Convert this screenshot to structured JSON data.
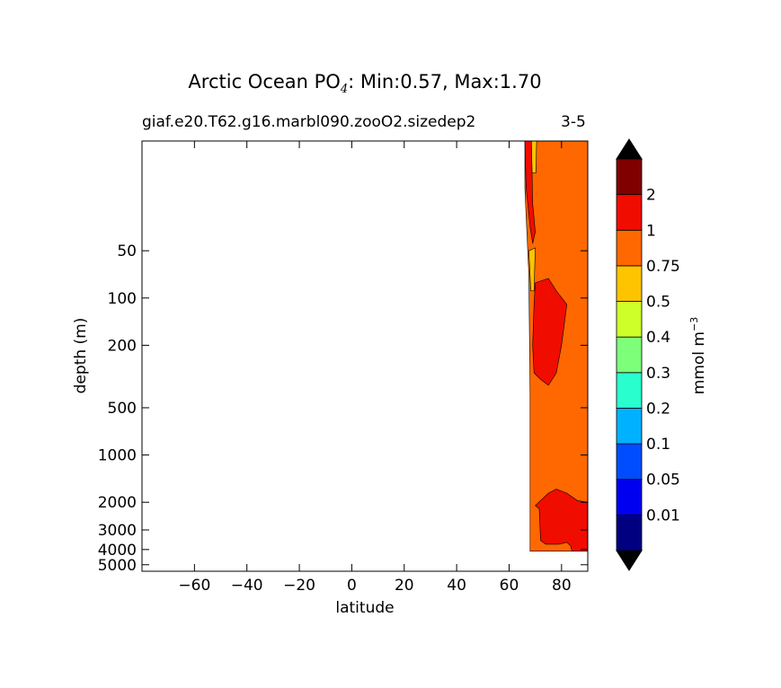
{
  "chart_data": {
    "type": "filled-contour",
    "title": {
      "prefix": "Arctic Ocean PO",
      "subscript": "4",
      "suffix": ": Min:0.57, Max:1.70"
    },
    "subtitle_left": "giaf.e20.T62.g16.marbl090.zooO2.sizedep2",
    "subtitle_right": "3-5",
    "xlabel": "latitude",
    "ylabel": "depth (m)",
    "xlim": [
      -80,
      90
    ],
    "ylim": [
      5500,
      10
    ],
    "x_ticks": [
      -60,
      -40,
      -20,
      0,
      20,
      40,
      60,
      80
    ],
    "x_tick_labels": [
      "−60",
      "−40",
      "−20",
      "0",
      "20",
      "40",
      "60",
      "80"
    ],
    "y_ticks": [
      50,
      100,
      200,
      500,
      1000,
      2000,
      3000,
      4000,
      5000
    ],
    "y_tick_labels": [
      "50",
      "100",
      "200",
      "500",
      "1000",
      "2000",
      "3000",
      "4000",
      "5000"
    ],
    "colorbar": {
      "label": "mmol m",
      "label_superscript": "−3",
      "levels": [
        "0.01",
        "0.05",
        "0.1",
        "0.2",
        "0.3",
        "0.4",
        "0.5",
        "0.75",
        "1",
        "2"
      ],
      "colors": [
        "#000080",
        "#0000f1",
        "#004dff",
        "#00b1ff",
        "#29ffce",
        "#7dff7a",
        "#ceff29",
        "#ffc400",
        "#ff6800",
        "#f10c00",
        "#800000"
      ],
      "extend": "both",
      "extend_color": "#000000"
    },
    "regions": [
      {
        "name": "orange-0.75-1",
        "value_range": "0.75-1",
        "color": "#ff6800",
        "outline": [
          [
            66,
            10
          ],
          [
            90,
            10
          ],
          [
            90,
            4100
          ],
          [
            68,
            4100
          ],
          [
            68,
            400
          ],
          [
            67.5,
            70
          ],
          [
            66,
            20
          ]
        ]
      },
      {
        "name": "red-1-2-near-surface",
        "value_range": "1-2",
        "color": "#f10c00",
        "outline": [
          [
            66,
            10
          ],
          [
            68.5,
            10
          ],
          [
            69,
            25
          ],
          [
            70,
            38
          ],
          [
            69,
            45
          ],
          [
            68,
            35
          ],
          [
            66.5,
            20
          ]
        ]
      },
      {
        "name": "yellow-0.5-0.75-surface",
        "value_range": "0.5-0.75",
        "color": "#ffc400",
        "outline": [
          [
            68.5,
            10
          ],
          [
            70.5,
            10
          ],
          [
            70.2,
            16
          ],
          [
            68.8,
            16
          ]
        ]
      },
      {
        "name": "yellow-0.5-0.75-near-50m",
        "value_range": "0.5-0.75",
        "color": "#ffc400",
        "outline": [
          [
            67.5,
            50
          ],
          [
            70,
            48
          ],
          [
            69.5,
            90
          ],
          [
            68.3,
            90
          ]
        ]
      },
      {
        "name": "red-1-2-upper-core",
        "value_range": "1-2",
        "color": "#f10c00",
        "outline": [
          [
            70,
            80
          ],
          [
            75,
            75
          ],
          [
            78,
            90
          ],
          [
            82,
            110
          ],
          [
            80,
            200
          ],
          [
            78,
            300
          ],
          [
            75,
            360
          ],
          [
            72,
            330
          ],
          [
            69.5,
            300
          ],
          [
            69,
            200
          ],
          [
            69.5,
            110
          ]
        ]
      },
      {
        "name": "red-1-2-deep",
        "value_range": "1-2",
        "color": "#f10c00",
        "outline": [
          [
            70,
            2100
          ],
          [
            72,
            1950
          ],
          [
            75,
            1750
          ],
          [
            78,
            1650
          ],
          [
            82,
            1750
          ],
          [
            86,
            1950
          ],
          [
            90,
            2000
          ],
          [
            90,
            4100
          ],
          [
            84,
            4100
          ],
          [
            83.5,
            3800
          ],
          [
            82,
            3600
          ],
          [
            79,
            3700
          ],
          [
            74,
            3700
          ],
          [
            72,
            3500
          ],
          [
            71.5,
            2200
          ]
        ]
      }
    ],
    "grid": false
  }
}
